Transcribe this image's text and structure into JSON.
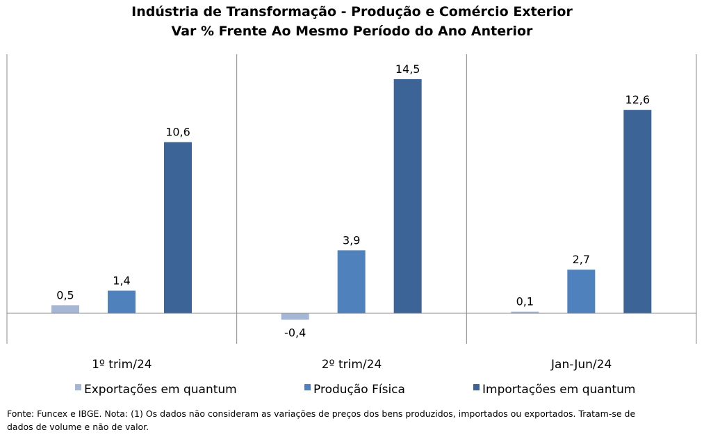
{
  "chart_data": {
    "type": "bar",
    "title": "Indústria de Transformação - Produção e Comércio Exterior",
    "subtitle": "Var % Frente Ao Mesmo Período do Ano Anterior",
    "categories": [
      "1º trim/24",
      "2º trim/24",
      "Jan-Jun/24"
    ],
    "series": [
      {
        "name": "Exportações em quantum",
        "values": [
          0.5,
          -0.4,
          0.1
        ],
        "labels": [
          "0,5",
          "-0,4",
          "0,1"
        ],
        "color": "#a6b7d6"
      },
      {
        "name": "Produção Física",
        "values": [
          1.4,
          3.9,
          2.7
        ],
        "labels": [
          "1,4",
          "3,9",
          "2,7"
        ],
        "color": "#4f81bd"
      },
      {
        "name": "Importações em quantum",
        "values": [
          10.6,
          14.5,
          12.6
        ],
        "labels": [
          "10,6",
          "14,5",
          "12,6"
        ],
        "color": "#3c6496"
      }
    ],
    "ylim": [
      -2,
      16
    ],
    "legend_position": "bottom"
  },
  "footnote": {
    "line1": "Fonte: Funcex e IBGE. Nota: (1) Os dados não consideram as variações de preços dos bens produzidos, importados ou exportados. Tratam-se de",
    "line2": "dados de volume e não de valor."
  }
}
